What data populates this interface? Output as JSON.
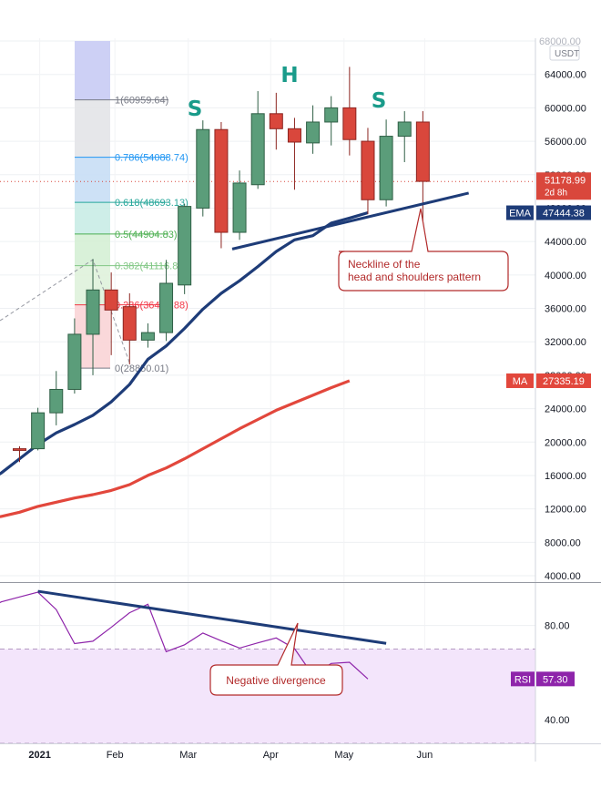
{
  "chart_data": [
    {
      "type": "candlestick",
      "pair_label": "USDT",
      "ylim": [
        4000,
        68000
      ],
      "y_ticks": [
        "68000.00",
        "64000.00",
        "60000.00",
        "56000.00",
        "52000.00",
        "48000.00",
        "44000.00",
        "40000.00",
        "36000.00",
        "32000.00",
        "28000.00",
        "24000.00",
        "20000.00",
        "16000.00",
        "12000.00",
        "8000.00",
        "4000.00"
      ],
      "x_labels": [
        {
          "label": "ec",
          "week": -1.6
        },
        {
          "label": "2021",
          "week": 1.1
        },
        {
          "label": "Feb",
          "week": 5.2
        },
        {
          "label": "Mar",
          "week": 9.2
        },
        {
          "label": "Apr",
          "week": 13.7
        },
        {
          "label": "May",
          "week": 17.7
        },
        {
          "label": "Jun",
          "week": 22.1
        }
      ],
      "candles": [
        {
          "week": 0,
          "open": 19200,
          "high": 19500,
          "low": 17600,
          "close": 19000
        },
        {
          "week": 1,
          "open": 19200,
          "high": 24100,
          "low": 19000,
          "close": 23500
        },
        {
          "week": 2,
          "open": 23500,
          "high": 28500,
          "low": 22000,
          "close": 26300
        },
        {
          "week": 3,
          "open": 26300,
          "high": 34800,
          "low": 25800,
          "close": 32900
        },
        {
          "week": 4,
          "open": 32900,
          "high": 41900,
          "low": 28000,
          "close": 38200
        },
        {
          "week": 5,
          "open": 38200,
          "high": 40300,
          "low": 30400,
          "close": 35800
        },
        {
          "week": 6,
          "open": 36200,
          "high": 37800,
          "low": 29300,
          "close": 32200
        },
        {
          "week": 7,
          "open": 32200,
          "high": 34200,
          "low": 31300,
          "close": 33100
        },
        {
          "week": 8,
          "open": 33100,
          "high": 41800,
          "low": 32100,
          "close": 39000
        },
        {
          "week": 9,
          "open": 38800,
          "high": 48500,
          "low": 37700,
          "close": 48200
        },
        {
          "week": 10,
          "open": 48000,
          "high": 58500,
          "low": 47000,
          "close": 57400
        },
        {
          "week": 11,
          "open": 57400,
          "high": 58300,
          "low": 43200,
          "close": 45100
        },
        {
          "week": 12,
          "open": 45100,
          "high": 52500,
          "low": 44200,
          "close": 51000
        },
        {
          "week": 13,
          "open": 50800,
          "high": 62000,
          "low": 50300,
          "close": 59300
        },
        {
          "week": 14,
          "open": 59300,
          "high": 61800,
          "low": 55000,
          "close": 57500
        },
        {
          "week": 15,
          "open": 57500,
          "high": 58800,
          "low": 50200,
          "close": 55900
        },
        {
          "week": 16,
          "open": 55800,
          "high": 60300,
          "low": 54500,
          "close": 58300
        },
        {
          "week": 17,
          "open": 58300,
          "high": 61400,
          "low": 55500,
          "close": 60000
        },
        {
          "week": 18,
          "open": 60000,
          "high": 64900,
          "low": 54300,
          "close": 56200
        },
        {
          "week": 19,
          "open": 56000,
          "high": 57600,
          "low": 47300,
          "close": 49000
        },
        {
          "week": 20,
          "open": 49000,
          "high": 58600,
          "low": 48200,
          "close": 56600
        },
        {
          "week": 21,
          "open": 56600,
          "high": 59600,
          "low": 53500,
          "close": 58300
        },
        {
          "week": 22,
          "open": 58300,
          "high": 59600,
          "low": 46200,
          "close": 51200
        }
      ],
      "ema": {
        "label": "EMA",
        "value_label": "47444.38",
        "color": "#1e3c78",
        "points": [
          [
            -3.0,
            14000
          ],
          [
            -2.0,
            15000
          ],
          [
            -1.0,
            16300
          ],
          [
            0.0,
            18000
          ],
          [
            1.0,
            19700
          ],
          [
            2.0,
            21100
          ],
          [
            3.0,
            22100
          ],
          [
            4.0,
            23200
          ],
          [
            5.0,
            24800
          ],
          [
            6.0,
            26900
          ],
          [
            7.0,
            29900
          ],
          [
            8.0,
            31500
          ],
          [
            9.0,
            33600
          ],
          [
            10.0,
            35900
          ],
          [
            11.0,
            37800
          ],
          [
            12.0,
            39300
          ],
          [
            13.0,
            41000
          ],
          [
            14.0,
            42800
          ],
          [
            15.0,
            44200
          ],
          [
            16.0,
            44700
          ],
          [
            17.0,
            46200
          ],
          [
            18.0,
            46800
          ],
          [
            19.0,
            47444
          ]
        ]
      },
      "ma": {
        "label": "MA",
        "value_label": "27335.19",
        "color": "#e2473c",
        "points": [
          [
            -3.0,
            10300
          ],
          [
            -2.0,
            10700
          ],
          [
            -1.0,
            11100
          ],
          [
            0.0,
            11600
          ],
          [
            1.0,
            12300
          ],
          [
            2.0,
            12800
          ],
          [
            3.0,
            13300
          ],
          [
            4.0,
            13700
          ],
          [
            5.0,
            14200
          ],
          [
            6.0,
            14900
          ],
          [
            7.0,
            16000
          ],
          [
            8.0,
            16900
          ],
          [
            9.0,
            18000
          ],
          [
            10.0,
            19200
          ],
          [
            11.0,
            20400
          ],
          [
            12.0,
            21600
          ],
          [
            13.0,
            22700
          ],
          [
            14.0,
            23800
          ],
          [
            15.0,
            24700
          ],
          [
            16.0,
            25600
          ],
          [
            17.0,
            26500
          ],
          [
            18.0,
            27335
          ]
        ]
      },
      "price": {
        "value_label": "51178.99",
        "sub_label": "2d 8h",
        "value": 51179,
        "color": "#d9473c"
      },
      "fibonacci": [
        {
          "label": "1(60959.64)",
          "value": 60959.64,
          "color": "#787b86"
        },
        {
          "label": "0.786(54088.74)",
          "value": 54088.74,
          "color": "#2196f3"
        },
        {
          "label": "0.618(48693.13)",
          "value": 48693.13,
          "color": "#26a69a"
        },
        {
          "label": "0.5(44904.83)",
          "value": 44904.83,
          "color": "#4caf50"
        },
        {
          "label": "0.382(41116.89)",
          "value": 41116.89,
          "color": "#81c784"
        },
        {
          "label": "0.236(36427.88)",
          "value": 36427.88,
          "color": "#f23645"
        },
        {
          "label": "0(28850.01)",
          "value": 28850.01,
          "color": "#787b86"
        }
      ],
      "neckline": {
        "points": [
          [
            11.6,
            43100
          ],
          [
            24.5,
            49800
          ]
        ],
        "color": "#1e3c78"
      },
      "patterns": [
        "S",
        "H",
        "S"
      ],
      "callouts": {
        "neckline": [
          "Neckline of the",
          "head and shoulders pattern"
        ],
        "divergence": "Negative divergence"
      }
    },
    {
      "type": "line",
      "series": [
        {
          "name": "RSI",
          "color": "#8e24aa"
        }
      ],
      "value_label": "57.30",
      "ylim": [
        30,
        98
      ],
      "y_ticks": [
        "80.00",
        "57.30",
        "40.00"
      ],
      "band": [
        30,
        70
      ],
      "points": [
        [
          -3.0,
          80.4
        ],
        [
          -2.0,
          85.7
        ],
        [
          -1.0,
          90.0
        ],
        [
          0.0,
          92.1
        ],
        [
          1.0,
          94.1
        ],
        [
          2.0,
          86.7
        ],
        [
          3.0,
          72.3
        ],
        [
          4.0,
          73.3
        ],
        [
          5.0,
          79.2
        ],
        [
          6.0,
          85.4
        ],
        [
          7.0,
          89.0
        ],
        [
          8.0,
          68.9
        ],
        [
          9.0,
          71.8
        ],
        [
          10.0,
          76.8
        ],
        [
          11.0,
          73.5
        ],
        [
          12.0,
          70.4
        ],
        [
          13.0,
          72.6
        ],
        [
          14.0,
          74.7
        ],
        [
          15.0,
          70.2
        ],
        [
          16.0,
          58.9
        ],
        [
          17.0,
          63.9
        ],
        [
          18.0,
          64.4
        ],
        [
          19.0,
          57.3
        ]
      ],
      "trendline": {
        "points": [
          [
            1.0,
            94.5
          ],
          [
            20.0,
            72.4
          ]
        ],
        "color": "#1e3c78"
      }
    }
  ]
}
